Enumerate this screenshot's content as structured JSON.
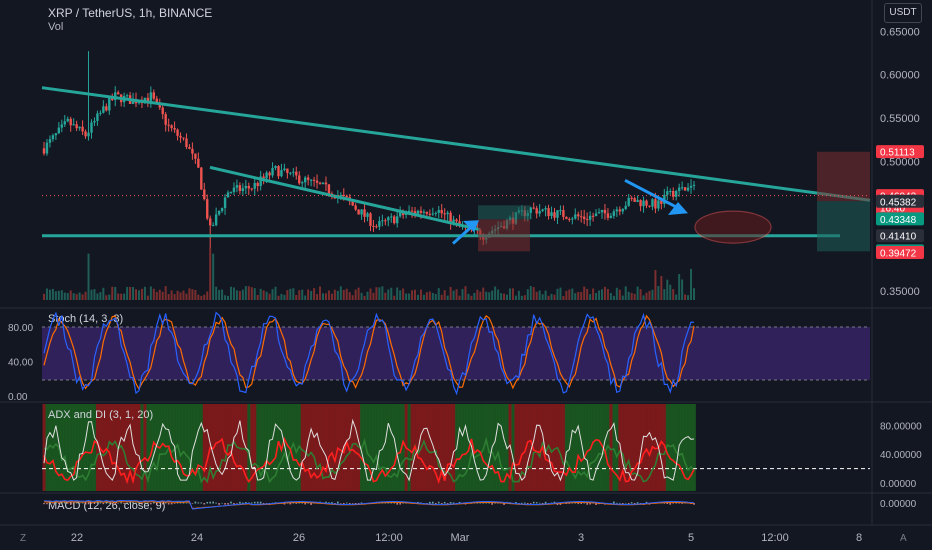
{
  "header": {
    "symbol_title": "XRP / TetherUS, 1h, BINANCE",
    "volume_label": "Vol",
    "currency_button": "USDT"
  },
  "price_axis": {
    "ticks": [
      "0.65000",
      "0.60000",
      "0.55000",
      "0.50000",
      "0.35000"
    ],
    "tick_values": [
      0.65,
      0.6,
      0.55,
      0.5,
      0.35
    ],
    "badges": [
      {
        "label": "0.51113",
        "value": 0.51113,
        "color": "#f23645"
      },
      {
        "label": "0.46042",
        "value": 0.46042,
        "color": "#f23645"
      },
      {
        "label": "16:40",
        "value": 0.4465,
        "color": "#f23645"
      },
      {
        "label": "0.45382",
        "value": 0.45382,
        "color": "#2a2e39"
      },
      {
        "label": "0.43348",
        "value": 0.43348,
        "color": "#089981"
      },
      {
        "label": "0.41410",
        "value": 0.4141,
        "color": "#2a2e39"
      },
      {
        "label": "0.39651",
        "value": 0.39651,
        "color": "#089981"
      },
      {
        "label": "0.39472",
        "value": 0.39472,
        "color": "#f23645"
      }
    ]
  },
  "time_axis": {
    "labels": [
      "22",
      "24",
      "26",
      "12:00",
      "Mar",
      "3",
      "5",
      "12:00",
      "8"
    ],
    "corner_left": "Z",
    "corner_right": "A"
  },
  "indicators": {
    "stoch": {
      "title": "Stoch (14, 3, 3)",
      "ticks": [
        "80.00",
        "40.00",
        "0.00"
      ],
      "tick_values": [
        80,
        40,
        0
      ]
    },
    "adx": {
      "title": "ADX and DI (3, 1, 20)",
      "ticks": [
        "80.00000",
        "40.00000",
        "0.00000"
      ],
      "tick_values": [
        80,
        40,
        0
      ]
    },
    "macd": {
      "title": "MACD (12, 26, close, 9)",
      "ticks": [
        "0.00000"
      ]
    }
  },
  "colors": {
    "background": "#131722",
    "bull": "#26a69a",
    "bear": "#ef5350",
    "trendline": "#26a69a",
    "stoch_band": "#4a2a8a",
    "stoch_k": "#2962ff",
    "stoch_d": "#ff6d00",
    "adx_bull_bg": "#1b5e20",
    "adx_bear_bg": "#8b1a1a"
  },
  "chart_data": {
    "type": "candlestick",
    "symbol": "XRP / TetherUS",
    "interval": "1h",
    "exchange": "BINANCE",
    "ylim": [
      0.34,
      0.66
    ],
    "current_price": 0.46042,
    "approx_close_path": [
      {
        "x": "Feb 21",
        "close": 0.52
      },
      {
        "x": "Feb 22",
        "close": 0.56
      },
      {
        "x": "Feb 22 12:00",
        "close": 0.58
      },
      {
        "x": "Feb 23",
        "close": 0.53
      },
      {
        "x": "Feb 23 12:00",
        "close": 0.45
      },
      {
        "x": "Feb 24",
        "close": 0.48
      },
      {
        "x": "Feb 25",
        "close": 0.46
      },
      {
        "x": "Feb 26",
        "close": 0.43
      },
      {
        "x": "Feb 27",
        "close": 0.44
      },
      {
        "x": "Feb 28",
        "close": 0.42
      },
      {
        "x": "Mar 1",
        "close": 0.43
      },
      {
        "x": "Mar 2",
        "close": 0.45
      },
      {
        "x": "Mar 3",
        "close": 0.44
      },
      {
        "x": "Mar 4",
        "close": 0.46
      },
      {
        "x": "Mar 5",
        "close": 0.47
      }
    ]
  }
}
